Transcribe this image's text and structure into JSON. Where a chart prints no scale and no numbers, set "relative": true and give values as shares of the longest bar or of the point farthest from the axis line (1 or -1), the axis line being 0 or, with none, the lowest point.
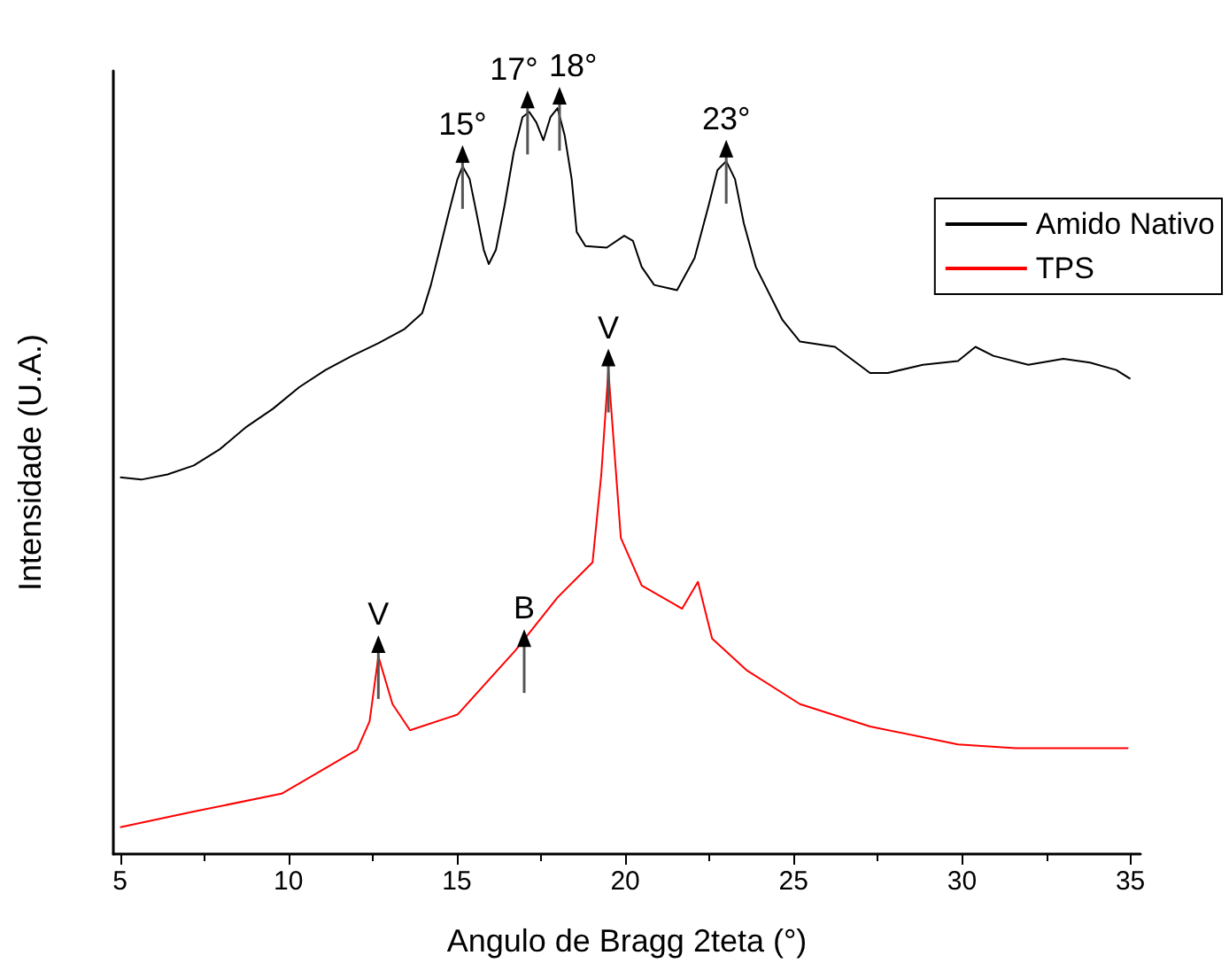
{
  "chart_data": {
    "type": "line",
    "relative": true,
    "xlabel": "Angulo de Bragg 2teta (°)",
    "ylabel": "Intensidade (U.A.)",
    "xlim": [
      4.8,
      35.3
    ],
    "xticks": [
      5,
      10,
      15,
      20,
      25,
      30,
      35
    ],
    "legend": "top right",
    "grid": false,
    "marker": "none",
    "line_style": "solid",
    "series": [
      {
        "name": "Amido Nativo",
        "color": "#000000",
        "x": [
          5.0,
          5.63,
          6.41,
          7.19,
          7.97,
          8.76,
          9.54,
          10.32,
          11.1,
          11.89,
          12.67,
          13.45,
          13.97,
          14.23,
          14.49,
          14.75,
          15.02,
          15.17,
          15.38,
          15.59,
          15.8,
          15.95,
          16.16,
          16.42,
          16.69,
          16.95,
          17.15,
          17.36,
          17.57,
          17.78,
          17.99,
          18.2,
          18.41,
          18.56,
          18.82,
          19.45,
          19.97,
          20.23,
          20.49,
          20.86,
          21.54,
          22.06,
          22.48,
          22.74,
          23.0,
          23.26,
          23.52,
          23.88,
          24.67,
          25.19,
          26.23,
          27.27,
          27.8,
          28.84,
          29.88,
          30.4,
          30.93,
          31.97,
          33.01,
          33.8,
          34.58,
          35.0
        ],
        "values": [
          0.505,
          0.502,
          0.509,
          0.521,
          0.543,
          0.573,
          0.597,
          0.626,
          0.649,
          0.668,
          0.685,
          0.704,
          0.725,
          0.763,
          0.81,
          0.858,
          0.905,
          0.922,
          0.905,
          0.858,
          0.81,
          0.791,
          0.81,
          0.87,
          0.941,
          0.988,
          0.995,
          0.981,
          0.957,
          0.988,
          1.0,
          0.964,
          0.905,
          0.834,
          0.815,
          0.813,
          0.829,
          0.822,
          0.787,
          0.763,
          0.756,
          0.799,
          0.87,
          0.917,
          0.929,
          0.905,
          0.846,
          0.787,
          0.716,
          0.687,
          0.68,
          0.645,
          0.645,
          0.656,
          0.661,
          0.68,
          0.668,
          0.656,
          0.664,
          0.659,
          0.649,
          0.637
        ]
      },
      {
        "name": "TPS",
        "color": "#ff0000",
        "x": [
          5.0,
          7.19,
          9.8,
          12.04,
          12.41,
          12.67,
          13.09,
          13.61,
          15.02,
          16.74,
          17.99,
          19.03,
          19.29,
          19.5,
          19.87,
          20.49,
          21.69,
          22.16,
          22.58,
          23.62,
          25.19,
          27.27,
          29.88,
          31.6,
          34.94
        ],
        "values": [
          0.036,
          0.057,
          0.081,
          0.14,
          0.178,
          0.265,
          0.201,
          0.166,
          0.187,
          0.273,
          0.344,
          0.391,
          0.509,
          0.649,
          0.424,
          0.36,
          0.329,
          0.365,
          0.289,
          0.246,
          0.201,
          0.171,
          0.147,
          0.142,
          0.142
        ]
      }
    ],
    "annotations": [
      {
        "text": "15°",
        "x": 15.17,
        "y": 0.922
      },
      {
        "text": "17°",
        "x": 17.1,
        "y": 0.995
      },
      {
        "text": "18°",
        "x": 18.05,
        "y": 1.0
      },
      {
        "text": "23°",
        "x": 23.0,
        "y": 0.929
      },
      {
        "text": "V",
        "x": 12.67,
        "y": 0.265
      },
      {
        "text": "B",
        "x": 17.0,
        "y": 0.273
      },
      {
        "text": "V",
        "x": 19.5,
        "y": 0.649
      }
    ]
  }
}
